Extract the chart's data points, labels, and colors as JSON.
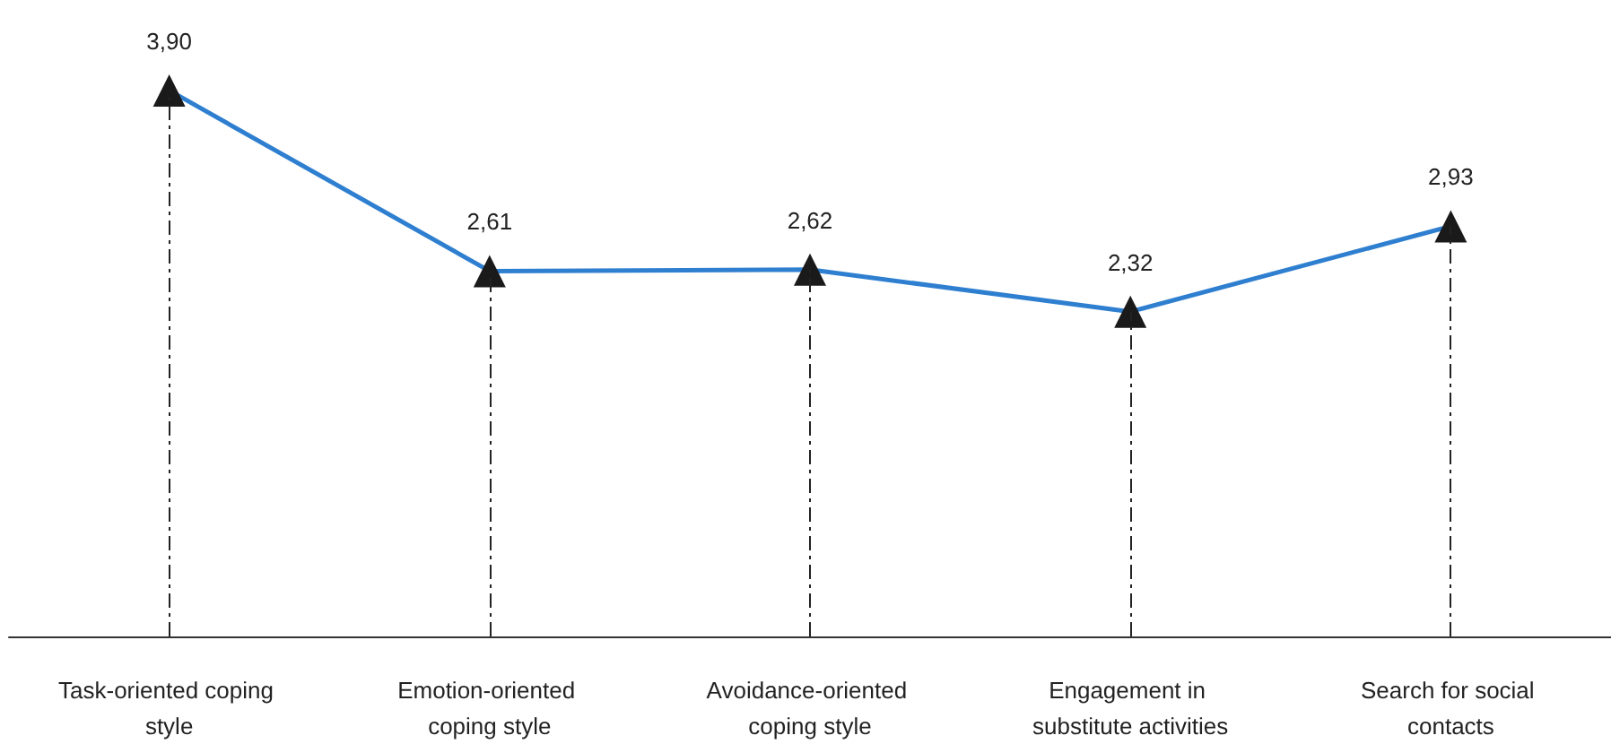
{
  "chart_data": {
    "type": "line",
    "categories": [
      "Task-oriented coping style",
      "Emotion-oriented coping style",
      "Avoidance-oriented coping style",
      "Engagement in substitute activities",
      "Search for social contacts"
    ],
    "series": [
      {
        "color": "#2f7fd0",
        "values": [
          3.9,
          2.61,
          2.62,
          2.32,
          2.93
        ],
        "value_labels": [
          "3,90",
          "2,61",
          "2,62",
          "2,32",
          "2,93"
        ]
      }
    ],
    "marker": "triangle",
    "line_style": "solid",
    "grid": "x",
    "tick_labels": "x"
  }
}
